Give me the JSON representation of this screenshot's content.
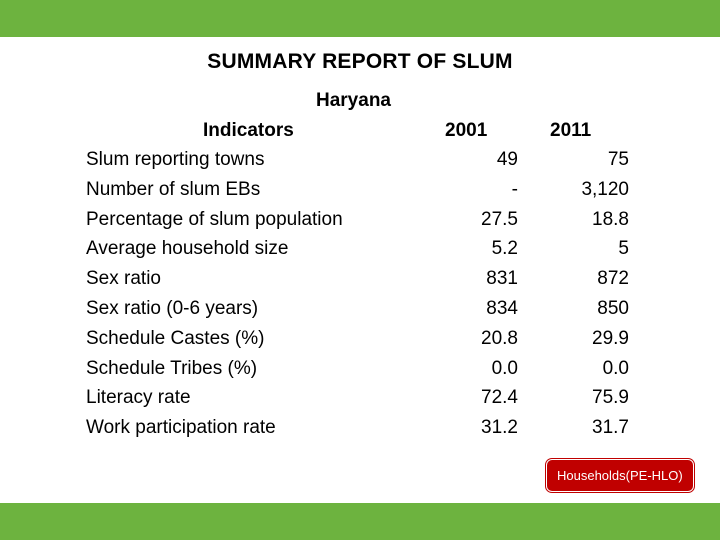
{
  "title": "SUMMARY REPORT OF SLUM",
  "state": "Haryana",
  "table": {
    "headers": {
      "indicator": "Indicators",
      "year1": "2001",
      "year2": "2011"
    },
    "rows": [
      {
        "label": "Slum reporting towns",
        "v2001": "49",
        "v2011": "75"
      },
      {
        "label": "Number of slum EBs",
        "v2001": "-",
        "v2011": "3,120"
      },
      {
        "label": "Percentage of slum population",
        "v2001": "27.5",
        "v2011": "18.8"
      },
      {
        "label": "Average household size",
        "v2001": "5.2",
        "v2011": "5"
      },
      {
        "label": "Sex ratio",
        "v2001": "831",
        "v2011": "872"
      },
      {
        "label": "Sex ratio (0-6 years)",
        "v2001": "834",
        "v2011": "850"
      },
      {
        "label": "Schedule Castes (%)",
        "v2001": "20.8",
        "v2011": "29.9"
      },
      {
        "label": "Schedule Tribes (%)",
        "v2001": "0.0",
        "v2011": "0.0"
      },
      {
        "label": "Literacy rate",
        "v2001": "72.4",
        "v2011": "75.9"
      },
      {
        "label": "Work participation rate",
        "v2001": "31.2",
        "v2011": "31.7"
      }
    ]
  },
  "badge": "Households(PE-HLO)",
  "colors": {
    "bar": "#6db33f",
    "badge": "#c00000"
  }
}
